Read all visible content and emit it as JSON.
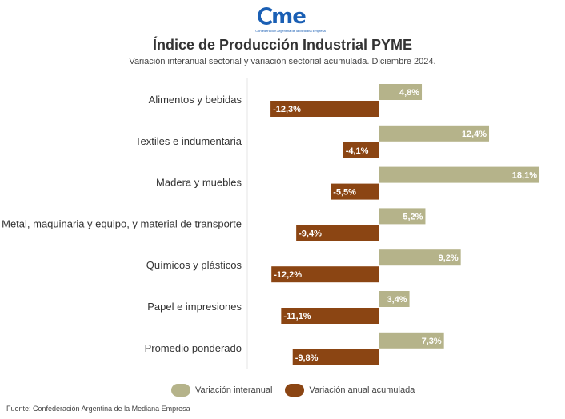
{
  "logo": {
    "text": "came",
    "subtitle": "Confederación Argentina de la Mediana Empresa"
  },
  "header": {
    "title": "Índice de Producción Industrial PYME",
    "subtitle": "Variación interanual sectorial y variación sectorial acumulada. Diciembre 2024."
  },
  "chart_data": {
    "type": "bar",
    "orientation": "horizontal",
    "categories": [
      "Alimentos y bebidas",
      "Textiles e indumentaria",
      "Madera y muebles",
      "Metal, maquinaria y equipo, y material de transporte",
      "Químicos y plásticos",
      "Papel e impresiones",
      "Promedio ponderado"
    ],
    "series": [
      {
        "name": "Variación interanual",
        "color": "#b5b38a",
        "values": [
          4.8,
          12.4,
          18.1,
          5.2,
          9.2,
          3.4,
          7.3
        ],
        "labels": [
          "4,8%",
          "12,4%",
          "18,1%",
          "5,2%",
          "9,2%",
          "3,4%",
          "7,3%"
        ]
      },
      {
        "name": "Variación anual acumulada",
        "color": "#8b4513",
        "values": [
          -12.3,
          -4.1,
          -5.5,
          -9.4,
          -12.2,
          -11.1,
          -9.8
        ],
        "labels": [
          "-12,3%",
          "-4,1%",
          "-5,5%",
          "-9,4%",
          "-12,2%",
          "-11,1%",
          "-9,8%"
        ]
      }
    ],
    "legend": "bottom",
    "grid": false
  },
  "footer": "Fuente: Confederación Argentina de la Mediana Empresa"
}
